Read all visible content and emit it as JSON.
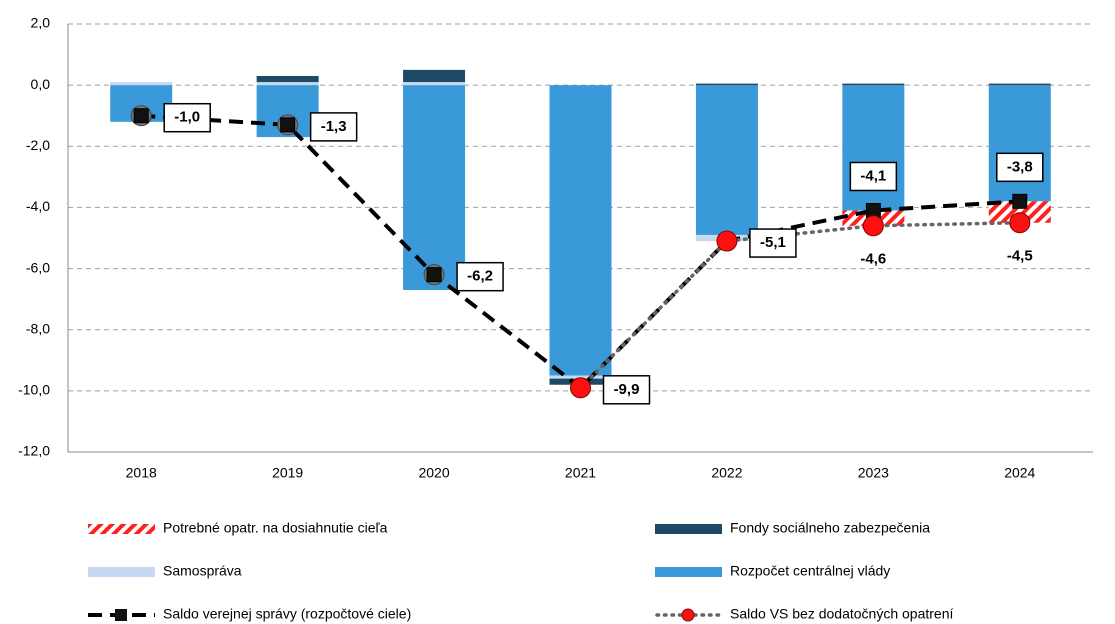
{
  "chart_data": {
    "type": "bar",
    "categories": [
      "2018",
      "2019",
      "2020",
      "2021",
      "2022",
      "2023",
      "2024"
    ],
    "ylim": [
      -12,
      2
    ],
    "yticks": [
      {
        "value": -12,
        "label": "-12,0"
      },
      {
        "value": -10,
        "label": "-10,0"
      },
      {
        "value": -8,
        "label": "-8,0"
      },
      {
        "value": -6,
        "label": "-6,0"
      },
      {
        "value": -4,
        "label": "-4,0"
      },
      {
        "value": -2,
        "label": "-2,0"
      },
      {
        "value": 0,
        "label": "0,0"
      },
      {
        "value": 2,
        "label": "2,0"
      }
    ],
    "grid": true,
    "series": [
      {
        "name": "Rozpočet centrálnej vlády",
        "color": "#3a9ad9",
        "values": [
          -1.2,
          -1.7,
          -6.7,
          -9.5,
          -4.9,
          -4.1,
          -3.8
        ]
      },
      {
        "name": "Samospráva",
        "color": "#c6d9f0",
        "values": [
          0.1,
          0.1,
          0.1,
          -0.1,
          -0.2,
          0,
          0
        ]
      },
      {
        "name": "Fondy sociálneho zabezpečenia",
        "color": "#1d4a67",
        "values": [
          0,
          0.2,
          0.4,
          -0.2,
          0.05,
          0.05,
          0.05
        ]
      },
      {
        "name": "Potrebné opatr. na dosiahnutie cieľa",
        "color": "#ff2020",
        "pattern": "hatch",
        "values": [
          0,
          0,
          0,
          0,
          0,
          -0.5,
          -0.7
        ]
      }
    ],
    "lines": [
      {
        "name": "Saldo verejnej správy (rozpočtové ciele)",
        "color": "#000000",
        "values": [
          -1.0,
          -1.3,
          -6.2,
          -9.9,
          -5.1,
          -4.1,
          -3.8
        ],
        "value_labels": [
          "-1,0",
          "-1,3",
          "-6,2",
          "-9,9",
          "-5,1",
          "-4,1",
          "-3,8"
        ]
      },
      {
        "name": "Saldo VS bez dodatočných opatrení",
        "color": "#ff0000",
        "values": [
          null,
          null,
          null,
          -9.9,
          -5.1,
          -4.6,
          -4.5
        ],
        "value_labels": [
          null,
          null,
          null,
          null,
          null,
          "-4,6",
          "-4,5"
        ]
      }
    ]
  }
}
